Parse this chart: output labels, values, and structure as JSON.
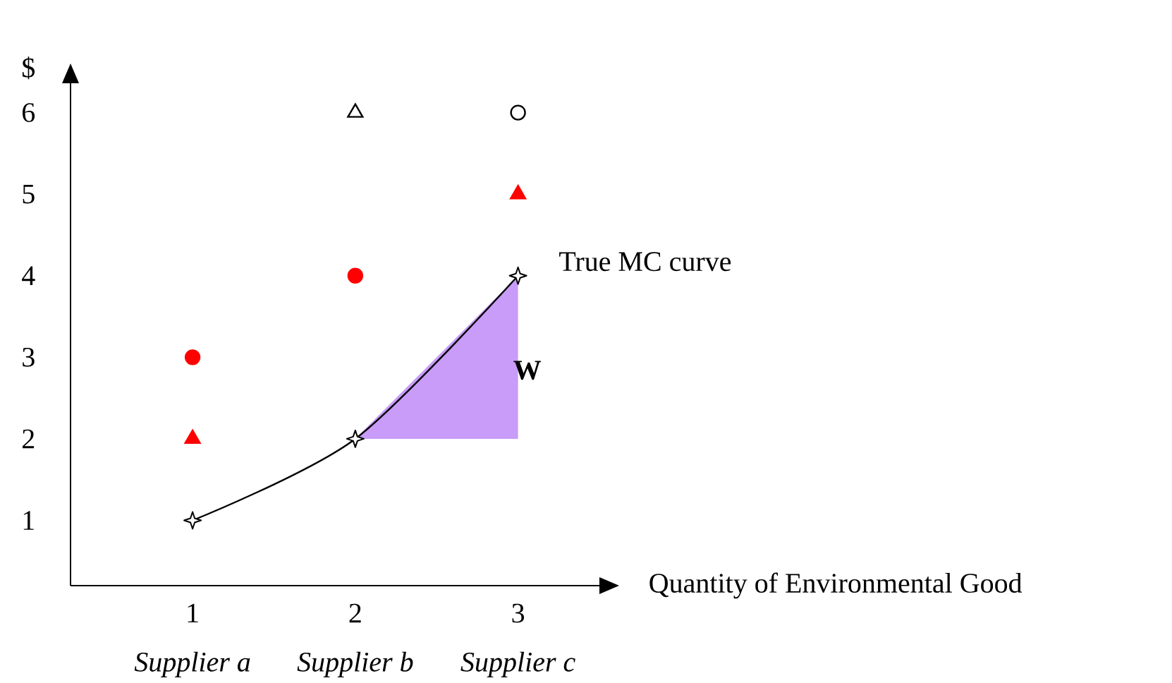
{
  "chart_data": {
    "type": "scatter",
    "xlabel": "Quantity of Environmental Good",
    "ylabel": "$",
    "xlim": [
      0.25,
      3.5
    ],
    "ylim": [
      0.2,
      6.36
    ],
    "xticks": [
      1,
      2,
      3
    ],
    "yticks": [
      1,
      2,
      3,
      4,
      5,
      6
    ],
    "annotations": [
      "*Supplier a*",
      "*Supplier b*",
      "*Supplier c*"
    ],
    "series": [
      {
        "name": "**W**",
        "type": "area",
        "color": "#c89cf8",
        "x": [
          2,
          3,
          3
        ],
        "values": [
          2,
          4,
          2
        ]
      },
      {
        "name": "True MC curve",
        "type": "line",
        "color": "#000000",
        "marker": "star",
        "x": [
          1,
          2,
          3
        ],
        "values": [
          1,
          2,
          4
        ]
      },
      {
        "color": "#ff0000",
        "marker": "circle",
        "x": [
          1,
          2
        ],
        "values": [
          3,
          4
        ]
      },
      {
        "color": "#ff0000",
        "marker": "triangle",
        "x": [
          1,
          3
        ],
        "values": [
          2,
          5
        ]
      },
      {
        "color": "#ffffff",
        "marker": "triangle",
        "x": [
          2
        ],
        "values": [
          6
        ]
      },
      {
        "color": "#ffffff",
        "marker": "circle",
        "x": [
          3
        ],
        "values": [
          6
        ]
      }
    ]
  }
}
